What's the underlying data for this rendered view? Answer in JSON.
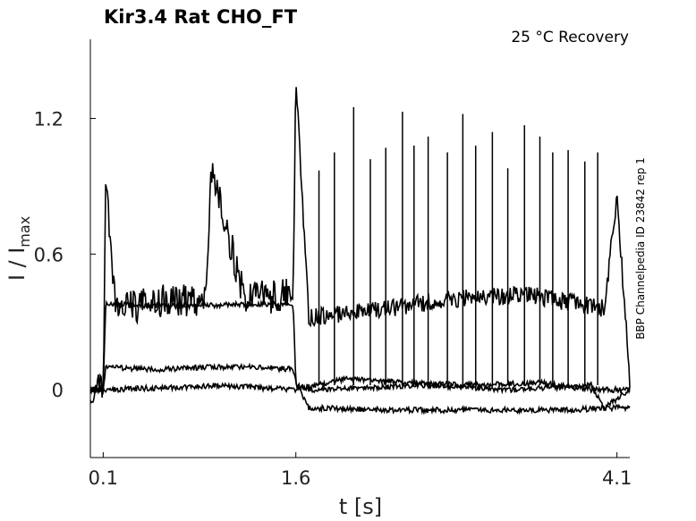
{
  "chart_data": {
    "type": "line",
    "title": "Kir3.4  Rat  CHO_FT",
    "condition": "25 °C  Recovery",
    "side_label": "BBP Channelpedia ID 23842 rep 1",
    "xlabel": "t [s]",
    "ylabel_main": "I / I",
    "ylabel_sub": "max",
    "xlim": [
      0.0,
      4.2
    ],
    "ylim": [
      -0.3,
      1.55
    ],
    "xticks": [
      0.1,
      1.6,
      4.1
    ],
    "xtick_labels": [
      "0.1",
      "1.6",
      "4.1"
    ],
    "yticks": [
      0,
      0.6,
      1.2
    ],
    "ytick_labels": [
      "0",
      "0.6",
      "1.2"
    ],
    "grid": false,
    "line_color": "#000000",
    "series": [
      {
        "x": [
          0.0,
          0.1,
          0.12,
          0.2,
          0.6,
          0.9,
          0.94,
          1.2,
          1.58,
          1.6,
          1.7,
          2.2,
          2.8,
          3.4,
          3.8,
          4.0,
          4.1,
          4.2
        ],
        "values": [
          0.0,
          0.0,
          0.95,
          0.35,
          0.4,
          0.38,
          0.98,
          0.4,
          0.42,
          1.38,
          0.32,
          0.35,
          0.4,
          0.42,
          0.38,
          0.36,
          0.85,
          0.05
        ]
      },
      {
        "x": [
          0.0,
          0.1,
          0.12,
          0.6,
          1.58,
          1.6,
          1.7,
          2.6,
          3.3,
          3.9,
          4.0,
          4.2
        ],
        "values": [
          0.0,
          0.0,
          0.38,
          0.37,
          0.38,
          0.02,
          0.0,
          0.02,
          0.0,
          0.02,
          -0.08,
          0.0
        ]
      },
      {
        "x": [
          0.0,
          0.1,
          0.12,
          0.5,
          0.9,
          1.3,
          1.58,
          1.6,
          1.7,
          2.4,
          3.2,
          3.75,
          4.0,
          4.2
        ],
        "values": [
          0.0,
          0.0,
          0.1,
          0.09,
          0.1,
          0.1,
          0.09,
          0.03,
          -0.08,
          -0.09,
          -0.09,
          -0.09,
          -0.08,
          -0.08
        ]
      },
      {
        "x": [
          0.0,
          0.1,
          0.12,
          0.6,
          1.0,
          1.58,
          1.6,
          2.0,
          2.5,
          3.0,
          3.5,
          3.9,
          4.2
        ],
        "values": [
          0.0,
          0.0,
          0.0,
          0.01,
          0.02,
          0.0,
          0.0,
          0.05,
          0.03,
          0.02,
          0.03,
          0.0,
          0.0
        ]
      }
    ],
    "spikes": [
      {
        "x": 1.78,
        "peak": 0.97
      },
      {
        "x": 1.9,
        "peak": 1.05
      },
      {
        "x": 2.05,
        "peak": 1.25
      },
      {
        "x": 2.18,
        "peak": 1.02
      },
      {
        "x": 2.3,
        "peak": 1.07
      },
      {
        "x": 2.43,
        "peak": 1.23
      },
      {
        "x": 2.52,
        "peak": 1.08
      },
      {
        "x": 2.63,
        "peak": 1.12
      },
      {
        "x": 2.78,
        "peak": 1.05
      },
      {
        "x": 2.9,
        "peak": 1.22
      },
      {
        "x": 3.0,
        "peak": 1.08
      },
      {
        "x": 3.13,
        "peak": 1.14
      },
      {
        "x": 3.25,
        "peak": 0.98
      },
      {
        "x": 3.38,
        "peak": 1.17
      },
      {
        "x": 3.5,
        "peak": 1.12
      },
      {
        "x": 3.6,
        "peak": 1.05
      },
      {
        "x": 3.72,
        "peak": 1.06
      },
      {
        "x": 3.85,
        "peak": 1.01
      },
      {
        "x": 3.95,
        "peak": 1.05
      }
    ]
  }
}
